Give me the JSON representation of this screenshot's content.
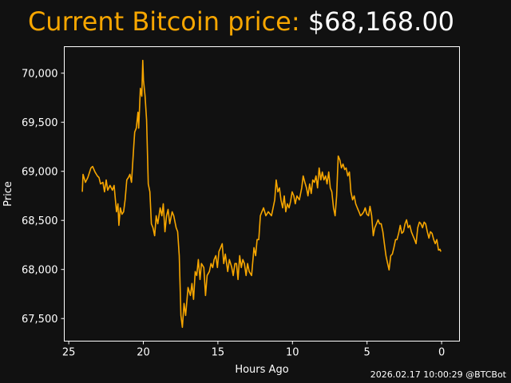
{
  "title": {
    "label": "Current Bitcoin price:",
    "value": "$68,168.00"
  },
  "footer": "2026.02.17 10:00:29 @BTCBot",
  "colors": {
    "line": "#f7a600",
    "background": "#111111",
    "text": "#ffffff"
  },
  "chart_data": {
    "type": "line",
    "xlabel": "Hours Ago",
    "ylabel": "Price",
    "xlim": [
      25.3,
      -1.2
    ],
    "ylim": [
      67270,
      70270
    ],
    "xticks": [
      25,
      20,
      15,
      10,
      5,
      0
    ],
    "xtick_labels": [
      "25",
      "20",
      "15",
      "10",
      "5",
      "0"
    ],
    "yticks": [
      67500,
      68000,
      68500,
      69000,
      69500,
      70000
    ],
    "ytick_labels": [
      "67,500",
      "68,000",
      "68,500",
      "69,000",
      "69,500",
      "70,000"
    ],
    "grid": false,
    "series": [
      {
        "name": "Price",
        "points": [
          [
            24.09,
            68791
          ],
          [
            24.04,
            68969
          ],
          [
            23.88,
            68888
          ],
          [
            23.72,
            68937
          ],
          [
            23.51,
            69034
          ],
          [
            23.4,
            69050
          ],
          [
            23.24,
            68993
          ],
          [
            23.08,
            68953
          ],
          [
            22.97,
            68937
          ],
          [
            22.87,
            68872
          ],
          [
            22.71,
            68888
          ],
          [
            22.6,
            68791
          ],
          [
            22.49,
            68912
          ],
          [
            22.39,
            68807
          ],
          [
            22.23,
            68856
          ],
          [
            22.07,
            68807
          ],
          [
            21.96,
            68856
          ],
          [
            21.8,
            68588
          ],
          [
            21.7,
            68669
          ],
          [
            21.64,
            68450
          ],
          [
            21.54,
            68628
          ],
          [
            21.43,
            68563
          ],
          [
            21.32,
            68588
          ],
          [
            21.22,
            68709
          ],
          [
            21.11,
            68912
          ],
          [
            21.0,
            68937
          ],
          [
            20.9,
            68969
          ],
          [
            20.79,
            68888
          ],
          [
            20.74,
            69018
          ],
          [
            20.63,
            69278
          ],
          [
            20.58,
            69399
          ],
          [
            20.47,
            69440
          ],
          [
            20.36,
            69602
          ],
          [
            20.31,
            69440
          ],
          [
            20.2,
            69846
          ],
          [
            20.1,
            69765
          ],
          [
            20.04,
            70130
          ],
          [
            19.99,
            69927
          ],
          [
            19.88,
            69765
          ],
          [
            19.78,
            69521
          ],
          [
            19.67,
            68872
          ],
          [
            19.56,
            68791
          ],
          [
            19.46,
            68466
          ],
          [
            19.35,
            68425
          ],
          [
            19.24,
            68344
          ],
          [
            19.14,
            68547
          ],
          [
            19.03,
            68466
          ],
          [
            18.87,
            68628
          ],
          [
            18.76,
            68547
          ],
          [
            18.66,
            68669
          ],
          [
            18.55,
            68385
          ],
          [
            18.44,
            68547
          ],
          [
            18.34,
            68612
          ],
          [
            18.23,
            68466
          ],
          [
            18.07,
            68588
          ],
          [
            17.96,
            68547
          ],
          [
            17.8,
            68425
          ],
          [
            17.7,
            68385
          ],
          [
            17.59,
            68141
          ],
          [
            17.48,
            67532
          ],
          [
            17.38,
            67411
          ],
          [
            17.27,
            67654
          ],
          [
            17.16,
            67532
          ],
          [
            17.0,
            67816
          ],
          [
            16.84,
            67735
          ],
          [
            16.74,
            67857
          ],
          [
            16.63,
            67695
          ],
          [
            16.52,
            67979
          ],
          [
            16.42,
            67938
          ],
          [
            16.31,
            68101
          ],
          [
            16.2,
            67898
          ],
          [
            16.1,
            68060
          ],
          [
            15.94,
            68020
          ],
          [
            15.83,
            67735
          ],
          [
            15.72,
            67938
          ],
          [
            15.57,
            67979
          ],
          [
            15.46,
            68060
          ],
          [
            15.35,
            68020
          ],
          [
            15.25,
            68101
          ],
          [
            15.14,
            68141
          ],
          [
            15.03,
            68020
          ],
          [
            14.93,
            68182
          ],
          [
            14.82,
            68222
          ],
          [
            14.71,
            68263
          ],
          [
            14.61,
            68060
          ],
          [
            14.5,
            68157
          ],
          [
            14.34,
            67979
          ],
          [
            14.23,
            68101
          ],
          [
            14.07,
            68020
          ],
          [
            13.97,
            67938
          ],
          [
            13.86,
            68060
          ],
          [
            13.75,
            68060
          ],
          [
            13.65,
            67898
          ],
          [
            13.54,
            68141
          ],
          [
            13.43,
            68020
          ],
          [
            13.33,
            68101
          ],
          [
            13.22,
            68060
          ],
          [
            13.11,
            67938
          ],
          [
            13.01,
            68060
          ],
          [
            12.9,
            67979
          ],
          [
            12.74,
            67938
          ],
          [
            12.58,
            68222
          ],
          [
            12.47,
            68141
          ],
          [
            12.37,
            68304
          ],
          [
            12.26,
            68304
          ],
          [
            12.15,
            68547
          ],
          [
            12.05,
            68588
          ],
          [
            11.94,
            68628
          ],
          [
            11.78,
            68547
          ],
          [
            11.62,
            68588
          ],
          [
            11.41,
            68547
          ],
          [
            11.19,
            68709
          ],
          [
            11.09,
            68912
          ],
          [
            10.98,
            68791
          ],
          [
            10.87,
            68831
          ],
          [
            10.77,
            68709
          ],
          [
            10.66,
            68628
          ],
          [
            10.55,
            68750
          ],
          [
            10.45,
            68588
          ],
          [
            10.34,
            68669
          ],
          [
            10.23,
            68628
          ],
          [
            10.13,
            68693
          ],
          [
            10.02,
            68791
          ],
          [
            9.91,
            68750
          ],
          [
            9.81,
            68669
          ],
          [
            9.7,
            68750
          ],
          [
            9.54,
            68709
          ],
          [
            9.38,
            68831
          ],
          [
            9.28,
            68953
          ],
          [
            9.17,
            68888
          ],
          [
            9.06,
            68831
          ],
          [
            8.96,
            68750
          ],
          [
            8.85,
            68872
          ],
          [
            8.74,
            68774
          ],
          [
            8.64,
            68912
          ],
          [
            8.53,
            68888
          ],
          [
            8.42,
            68953
          ],
          [
            8.32,
            68831
          ],
          [
            8.21,
            69034
          ],
          [
            8.1,
            68912
          ],
          [
            8.0,
            68993
          ],
          [
            7.89,
            68912
          ],
          [
            7.78,
            68953
          ],
          [
            7.68,
            68872
          ],
          [
            7.57,
            68993
          ],
          [
            7.46,
            68831
          ],
          [
            7.36,
            68791
          ],
          [
            7.25,
            68628
          ],
          [
            7.14,
            68547
          ],
          [
            7.04,
            68750
          ],
          [
            6.93,
            69156
          ],
          [
            6.82,
            69115
          ],
          [
            6.72,
            69034
          ],
          [
            6.61,
            69074
          ],
          [
            6.5,
            69018
          ],
          [
            6.4,
            69034
          ],
          [
            6.29,
            68953
          ],
          [
            6.18,
            68993
          ],
          [
            6.08,
            68791
          ],
          [
            5.97,
            68709
          ],
          [
            5.86,
            68750
          ],
          [
            5.76,
            68669
          ],
          [
            5.65,
            68628
          ],
          [
            5.54,
            68588
          ],
          [
            5.44,
            68547
          ],
          [
            5.33,
            68563
          ],
          [
            5.22,
            68588
          ],
          [
            5.12,
            68628
          ],
          [
            5.01,
            68563
          ],
          [
            4.9,
            68547
          ],
          [
            4.8,
            68644
          ],
          [
            4.69,
            68547
          ],
          [
            4.58,
            68344
          ],
          [
            4.48,
            68425
          ],
          [
            4.37,
            68466
          ],
          [
            4.26,
            68506
          ],
          [
            4.16,
            68466
          ],
          [
            4.05,
            68466
          ],
          [
            3.94,
            68385
          ],
          [
            3.84,
            68263
          ],
          [
            3.73,
            68141
          ],
          [
            3.62,
            68060
          ],
          [
            3.52,
            67995
          ],
          [
            3.41,
            68141
          ],
          [
            3.3,
            68157
          ],
          [
            3.2,
            68222
          ],
          [
            3.09,
            68304
          ],
          [
            2.99,
            68304
          ],
          [
            2.88,
            68368
          ],
          [
            2.77,
            68450
          ],
          [
            2.67,
            68368
          ],
          [
            2.56,
            68385
          ],
          [
            2.45,
            68466
          ],
          [
            2.35,
            68506
          ],
          [
            2.24,
            68425
          ],
          [
            2.13,
            68450
          ],
          [
            2.03,
            68385
          ],
          [
            1.92,
            68344
          ],
          [
            1.81,
            68304
          ],
          [
            1.71,
            68263
          ],
          [
            1.6,
            68425
          ],
          [
            1.49,
            68482
          ],
          [
            1.39,
            68466
          ],
          [
            1.28,
            68425
          ],
          [
            1.17,
            68482
          ],
          [
            1.07,
            68466
          ],
          [
            0.96,
            68385
          ],
          [
            0.85,
            68320
          ],
          [
            0.75,
            68385
          ],
          [
            0.64,
            68368
          ],
          [
            0.53,
            68304
          ],
          [
            0.43,
            68263
          ],
          [
            0.32,
            68304
          ],
          [
            0.21,
            68198
          ],
          [
            0.11,
            68206
          ],
          [
            0.05,
            68182
          ]
        ]
      }
    ]
  }
}
